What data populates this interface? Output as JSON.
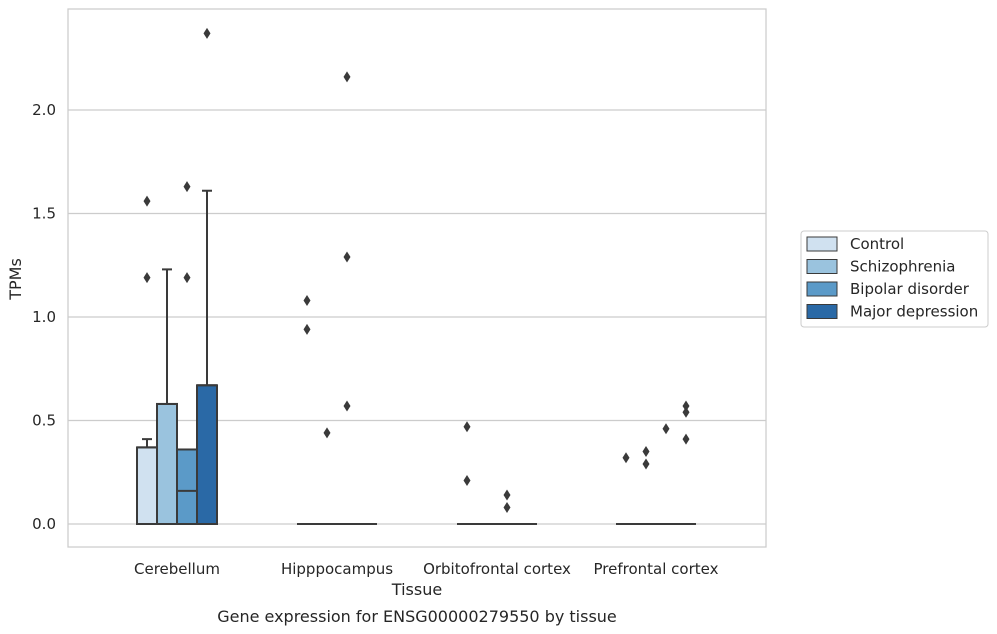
{
  "chart_data": {
    "type": "box",
    "title": "",
    "xlabel": "Tissue",
    "ylabel": "TPMs",
    "caption": "Gene expression for ENSG00000279550 by tissue",
    "ylim": [
      -0.11,
      2.44
    ],
    "yticks": [
      "0.0",
      "0.5",
      "1.0",
      "1.5",
      "2.0"
    ],
    "yticks_values": [
      0,
      0.5,
      1.0,
      1.5,
      2.0
    ],
    "grid": "horizontal",
    "legend_position": "right",
    "categories": [
      "Cerebellum",
      "Hipppocampus",
      "Orbitofrontal cortex",
      "Prefrontal cortex"
    ],
    "series": [
      {
        "name": "Control",
        "color": "#d0e1f0",
        "boxes": [
          {
            "q1": 0.0,
            "median": 0.37,
            "q3": 0.37,
            "whislo": 0.0,
            "whishi": 0.41,
            "fliers": [
              1.19,
              1.56
            ]
          },
          {
            "q1": 0.0,
            "median": 0.0,
            "q3": 0.0,
            "whislo": 0.0,
            "whishi": 0.0,
            "fliers": [
              0.94,
              1.08
            ]
          },
          {
            "q1": 0.0,
            "median": 0.0,
            "q3": 0.0,
            "whislo": 0.0,
            "whishi": 0.0,
            "fliers": [
              0.21,
              0.47
            ]
          },
          {
            "q1": 0.0,
            "median": 0.0,
            "q3": 0.0,
            "whislo": 0.0,
            "whishi": 0.0,
            "fliers": [
              0.32
            ]
          }
        ]
      },
      {
        "name": "Schizophrenia",
        "color": "#9ac3de",
        "boxes": [
          {
            "q1": 0.0,
            "median": 0.58,
            "q3": 0.58,
            "whislo": 0.0,
            "whishi": 1.23,
            "fliers": []
          },
          {
            "q1": 0.0,
            "median": 0.0,
            "q3": 0.0,
            "whislo": 0.0,
            "whishi": 0.0,
            "fliers": [
              0.44
            ]
          },
          {
            "q1": 0.0,
            "median": 0.0,
            "q3": 0.0,
            "whislo": 0.0,
            "whishi": 0.0,
            "fliers": []
          },
          {
            "q1": 0.0,
            "median": 0.0,
            "q3": 0.0,
            "whislo": 0.0,
            "whishi": 0.0,
            "fliers": [
              0.29,
              0.35
            ]
          }
        ]
      },
      {
        "name": "Bipolar disorder",
        "color": "#5b9ac8",
        "boxes": [
          {
            "q1": 0.0,
            "median": 0.16,
            "q3": 0.36,
            "whislo": 0.0,
            "whishi": 0.36,
            "fliers": [
              1.19,
              1.63
            ]
          },
          {
            "q1": 0.0,
            "median": 0.0,
            "q3": 0.0,
            "whislo": 0.0,
            "whishi": 0.0,
            "fliers": [
              0.57,
              1.29,
              2.16
            ]
          },
          {
            "q1": 0.0,
            "median": 0.0,
            "q3": 0.0,
            "whislo": 0.0,
            "whishi": 0.0,
            "fliers": [
              0.08,
              0.14
            ]
          },
          {
            "q1": 0.0,
            "median": 0.0,
            "q3": 0.0,
            "whislo": 0.0,
            "whishi": 0.0,
            "fliers": [
              0.46
            ]
          }
        ]
      },
      {
        "name": "Major depression",
        "color": "#2a69a6",
        "boxes": [
          {
            "q1": 0.0,
            "median": 0.67,
            "q3": 0.67,
            "whislo": 0.0,
            "whishi": 1.61,
            "fliers": [
              2.37
            ]
          },
          {
            "q1": 0.0,
            "median": 0.0,
            "q3": 0.0,
            "whislo": 0.0,
            "whishi": 0.0,
            "fliers": []
          },
          {
            "q1": 0.0,
            "median": 0.0,
            "q3": 0.0,
            "whislo": 0.0,
            "whishi": 0.0,
            "fliers": []
          },
          {
            "q1": 0.0,
            "median": 0.0,
            "q3": 0.0,
            "whislo": 0.0,
            "whishi": 0.0,
            "fliers": [
              0.41,
              0.54,
              0.57
            ]
          }
        ]
      }
    ]
  }
}
